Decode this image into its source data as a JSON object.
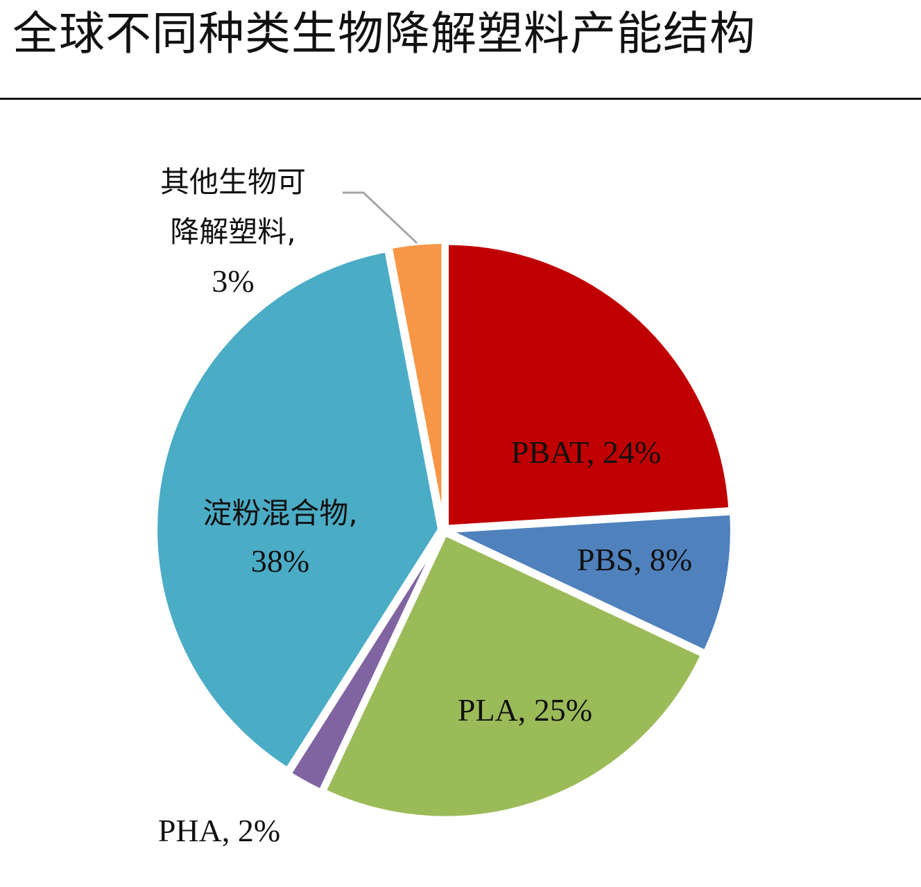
{
  "chart_data": {
    "type": "pie",
    "title": "全球不同种类生物降解塑料产能结构",
    "slices": [
      {
        "name": "PBAT",
        "value": 24,
        "color": "#C00000",
        "label_lines": [
          "PBAT, 24%"
        ]
      },
      {
        "name": "PBS",
        "value": 8,
        "color": "#4F81BD",
        "label_lines": [
          "PBS, 8%"
        ]
      },
      {
        "name": "PLA",
        "value": 25,
        "color": "#9BBB59",
        "label_lines": [
          "PLA, 25%"
        ]
      },
      {
        "name": "PHA",
        "value": 2,
        "color": "#8064A2",
        "label_lines": [
          "PHA, 2%"
        ]
      },
      {
        "name": "淀粉混合物",
        "value": 38,
        "color": "#4BACC6",
        "label_lines": [
          "淀粉混合物,",
          "38%"
        ]
      },
      {
        "name": "其他生物可降解塑料",
        "value": 3,
        "color": "#F79646",
        "label_lines": [
          "其他生物可",
          "降解塑料,",
          "3%"
        ]
      }
    ]
  }
}
